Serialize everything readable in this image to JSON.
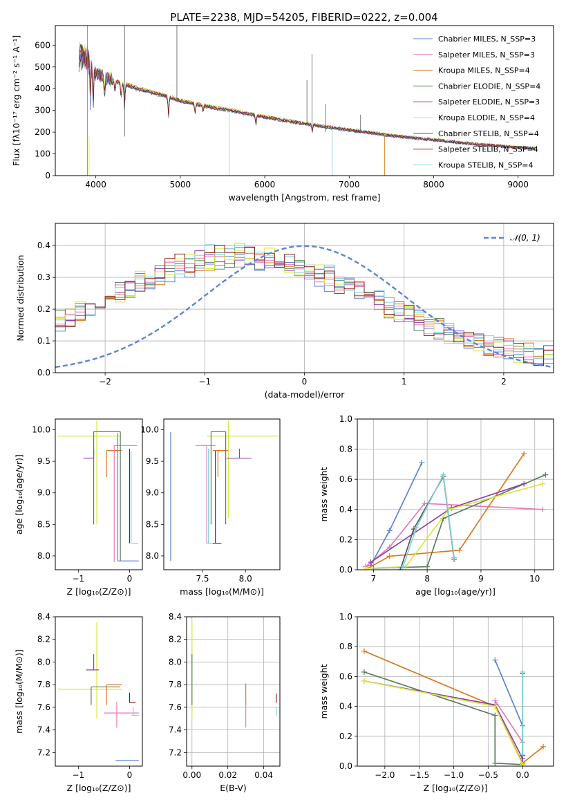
{
  "chart_data": [
    {
      "id": "spectrum",
      "type": "line",
      "title": "PLATE=2238, MJD=54205, FIBERID=0222, z=0.004",
      "xlabel": "wavelength [Angstrom, rest frame]",
      "ylabel": "Flux [fλ10⁻¹⁷ erg cm⁻² s⁻¹ A⁻¹]",
      "xlim": [
        3520,
        9420
      ],
      "ylim": [
        0,
        690
      ],
      "xticks": [
        4000,
        5000,
        6000,
        7000,
        8000,
        9000
      ],
      "yticks": [
        0,
        100,
        200,
        300,
        400,
        500,
        600
      ],
      "grid": false,
      "legend_position": "top-right",
      "continuum": [
        [
          3800,
          540
        ],
        [
          3900,
          520
        ],
        [
          4000,
          470
        ],
        [
          4200,
          440
        ],
        [
          4500,
          400
        ],
        [
          4800,
          370
        ],
        [
          5000,
          345
        ],
        [
          5300,
          320
        ],
        [
          5600,
          300
        ],
        [
          6000,
          270
        ],
        [
          6300,
          250
        ],
        [
          6600,
          232
        ],
        [
          7000,
          210
        ],
        [
          7500,
          185
        ],
        [
          8000,
          165
        ],
        [
          8500,
          145
        ],
        [
          9000,
          130
        ],
        [
          9200,
          125
        ]
      ],
      "series": [
        {
          "name": "Chabrier MILES, N_SSP=3",
          "color": "#5b84d6"
        },
        {
          "name": "Salpeter MILES, N_SSP=3",
          "color": "#e67ab5"
        },
        {
          "name": "Kroupa MILES, N_SSP=4",
          "color": "#d8791f"
        },
        {
          "name": "Chabrier ELODIE, N_SSP=4",
          "color": "#5a7d5a"
        },
        {
          "name": "Salpeter ELODIE, N_SSP=3",
          "color": "#8e3fb0"
        },
        {
          "name": "Kroupa ELODIE, N_SSP=4",
          "color": "#d6e83a"
        },
        {
          "name": "Chabrier STELIB, N_SSP=4",
          "color": "#555555"
        },
        {
          "name": "Salpeter STELIB, N_SSP=4",
          "color": "#8b1a1a"
        },
        {
          "name": "Kroupa STELIB, N_SSP=4",
          "color": "#7fd2d8"
        }
      ]
    },
    {
      "id": "residuals",
      "type": "line",
      "xlabel": "(data-model)/error",
      "ylabel": "Normed distribution",
      "xlim": [
        -2.5,
        2.5
      ],
      "ylim": [
        0,
        0.47
      ],
      "xticks": [
        -2,
        -1,
        0,
        1,
        2
      ],
      "yticks": [
        0.0,
        0.1,
        0.2,
        0.3,
        0.4
      ],
      "grid": true,
      "legend_position": "top-right",
      "legend": "𝒩(0, 1)",
      "gaussian": {
        "mean": 0,
        "sigma": 1,
        "color": "#5b84d6"
      }
    },
    {
      "id": "age-vs-Z",
      "type": "scatter",
      "xlabel": "Z [log₁₀(Z/Z⊙)]",
      "ylabel": "age  [log₁₀(age/yr)]",
      "xlim": [
        -1.45,
        0.25
      ],
      "ylim": [
        7.78,
        10.17
      ],
      "xticks": [
        -1,
        0
      ],
      "yticks": [
        8.0,
        8.5,
        9.0,
        9.5,
        10.0
      ],
      "grid": false
    },
    {
      "id": "age-vs-mass",
      "type": "scatter",
      "xlabel": "mass [log₁₀(M/M⊙)]",
      "xlim": [
        7.05,
        8.4
      ],
      "ylim": [
        7.78,
        10.17
      ],
      "xticks": [
        7.5,
        8.0
      ],
      "yticks": [
        8.0,
        8.5,
        9.0,
        9.5,
        10.0
      ],
      "grid": false
    },
    {
      "id": "weight-vs-age",
      "type": "line",
      "xlabel": "age  [log₁₀(age/yr)]",
      "ylabel": "mass weight",
      "xlim": [
        6.7,
        10.35
      ],
      "ylim": [
        0.0,
        1.0
      ],
      "xticks": [
        7,
        8,
        9,
        10
      ],
      "yticks": [
        0.0,
        0.2,
        0.4,
        0.6,
        0.8,
        1.0
      ],
      "grid": true,
      "series": [
        {
          "color": "#5b84d6",
          "x": [
            6.95,
            7.3,
            7.9
          ],
          "y": [
            0.03,
            0.26,
            0.71
          ]
        },
        {
          "color": "#e67ab5",
          "x": [
            6.85,
            7.3,
            7.95,
            10.15
          ],
          "y": [
            0.02,
            0.15,
            0.44,
            0.4
          ]
        },
        {
          "color": "#d8791f",
          "x": [
            6.9,
            7.3,
            8.6,
            9.8
          ],
          "y": [
            0.01,
            0.09,
            0.13,
            0.77
          ]
        },
        {
          "color": "#5a7d5a",
          "x": [
            7.0,
            8.0,
            8.3,
            10.2
          ],
          "y": [
            0.01,
            0.02,
            0.34,
            0.63
          ]
        },
        {
          "color": "#8e3fb0",
          "x": [
            6.95,
            8.45,
            9.8
          ],
          "y": [
            0.05,
            0.41,
            0.57
          ]
        },
        {
          "color": "#d6e83a",
          "x": [
            6.85,
            7.6,
            8.4,
            10.15
          ],
          "y": [
            0.01,
            0.02,
            0.4,
            0.57
          ]
        },
        {
          "color": "#555555",
          "x": [
            7.5,
            7.75,
            8.3,
            8.5
          ],
          "y": [
            0.0,
            0.27,
            0.62,
            0.07
          ]
        },
        {
          "color": "#7fd2d8",
          "x": [
            7.55,
            7.8,
            8.3,
            8.5
          ],
          "y": [
            0.02,
            0.28,
            0.63,
            0.08
          ]
        }
      ]
    },
    {
      "id": "mass-vs-Z",
      "type": "scatter",
      "xlabel": "Z [log₁₀(Z/Z⊙)]",
      "ylabel": "mass [log₁₀(M/M⊙)]",
      "xlim": [
        -1.45,
        0.25
      ],
      "ylim": [
        7.08,
        8.4
      ],
      "xticks": [
        -1,
        0
      ],
      "yticks": [
        7.2,
        7.4,
        7.6,
        7.8,
        8.0,
        8.2,
        8.4
      ],
      "grid": false
    },
    {
      "id": "mass-vs-EBV",
      "type": "scatter",
      "xlabel": "E(B-V)",
      "xlim": [
        -0.003,
        0.049
      ],
      "ylim": [
        7.08,
        8.4
      ],
      "xticks": [
        0.0,
        0.02,
        0.04
      ],
      "yticks": [
        7.2,
        7.4,
        7.6,
        7.8,
        8.0,
        8.2,
        8.4
      ],
      "grid": true
    },
    {
      "id": "weight-vs-Z",
      "type": "line",
      "xlabel": "Z [log₁₀(Z/Z⊙)]",
      "ylabel": "mass weight",
      "xlim": [
        -2.4,
        0.45
      ],
      "ylim": [
        0.0,
        1.0
      ],
      "xticks": [
        -2.0,
        -1.5,
        -1.0,
        -0.5,
        0.0
      ],
      "yticks": [
        0.0,
        0.2,
        0.4,
        0.6,
        0.8,
        1.0
      ],
      "grid": true,
      "series": [
        {
          "color": "#5b84d6",
          "x": [
            -0.4,
            0.0,
            0.0
          ],
          "y": [
            0.71,
            0.27,
            0.02
          ]
        },
        {
          "color": "#e67ab5",
          "x": [
            -0.4,
            0.0,
            0.0
          ],
          "y": [
            0.44,
            0.16,
            0.01
          ]
        },
        {
          "color": "#d8791f",
          "x": [
            -2.3,
            -0.4,
            0.0,
            0.3
          ],
          "y": [
            0.77,
            0.4,
            0.02,
            0.13
          ]
        },
        {
          "color": "#5a7d5a",
          "x": [
            -2.3,
            -0.4,
            -0.4,
            0.0
          ],
          "y": [
            0.63,
            0.34,
            0.02,
            0.01
          ]
        },
        {
          "color": "#8e3fb0",
          "x": [
            -2.3,
            -0.4,
            0.0
          ],
          "y": [
            0.57,
            0.41,
            0.05
          ]
        },
        {
          "color": "#d6e83a",
          "x": [
            -2.3,
            -0.4,
            0.0
          ],
          "y": [
            0.57,
            0.4,
            0.01
          ]
        },
        {
          "color": "#555555",
          "x": [
            0.0,
            0.0
          ],
          "y": [
            0.62,
            0.07
          ]
        },
        {
          "color": "#7fd2d8",
          "x": [
            0.0,
            0.0
          ],
          "y": [
            0.63,
            0.08
          ]
        }
      ]
    }
  ]
}
